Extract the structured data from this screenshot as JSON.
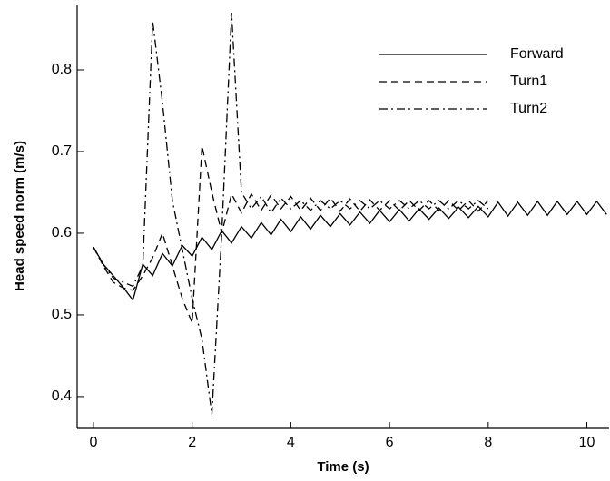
{
  "chart_data": {
    "type": "line",
    "x_label": "Time (s)",
    "y_label": "Head speed norm (m/s)",
    "x": [
      0,
      0.2,
      0.4,
      0.6,
      0.8,
      1.0,
      1.2,
      1.4,
      1.6,
      1.8,
      2.0,
      2.2,
      2.4,
      2.6,
      2.8,
      3.0,
      3.2,
      3.4,
      3.6,
      3.8,
      4.0,
      4.2,
      4.4,
      4.6,
      4.8,
      5.0,
      5.2,
      5.4,
      5.6,
      5.8,
      6.0,
      6.2,
      6.4,
      6.6,
      6.8,
      7.0,
      7.2,
      7.4,
      7.6,
      7.8,
      8.0,
      8.2,
      8.4,
      8.6,
      8.8,
      9.0,
      9.2,
      9.4,
      9.6,
      9.8,
      10.0,
      10.2,
      10.4
    ],
    "series": [
      {
        "name": "Forward",
        "color": "#000000",
        "dash": "solid",
        "values": [
          0.583,
          0.562,
          0.548,
          0.534,
          0.518,
          0.562,
          0.548,
          0.575,
          0.56,
          0.585,
          0.572,
          0.595,
          0.58,
          0.603,
          0.588,
          0.608,
          0.594,
          0.613,
          0.598,
          0.617,
          0.602,
          0.62,
          0.605,
          0.622,
          0.608,
          0.624,
          0.61,
          0.626,
          0.612,
          0.628,
          0.614,
          0.629,
          0.615,
          0.63,
          0.617,
          0.631,
          0.618,
          0.632,
          0.619,
          0.633,
          0.62,
          0.638,
          0.621,
          0.638,
          0.622,
          0.639,
          0.622,
          0.639,
          0.623,
          0.639,
          0.623,
          0.639,
          0.623
        ]
      },
      {
        "name": "Turn1",
        "color": "#000000",
        "dash": "dashed",
        "values": [
          0.583,
          0.56,
          0.54,
          0.533,
          0.53,
          0.548,
          0.57,
          0.6,
          0.56,
          0.52,
          0.49,
          0.707,
          0.65,
          0.6,
          0.648,
          0.625,
          0.648,
          0.628,
          0.647,
          0.63,
          0.645,
          0.628,
          0.643,
          0.628,
          0.643,
          0.627,
          0.642,
          0.627,
          0.641,
          0.628,
          0.64,
          0.628,
          0.64,
          0.628,
          0.64,
          0.628,
          0.64,
          0.628,
          0.64,
          0.627,
          0.64,
          null,
          null,
          null,
          null,
          null,
          null,
          null,
          null,
          null,
          null,
          null,
          null
        ]
      },
      {
        "name": "Turn2",
        "color": "#000000",
        "dash": "dashdot",
        "values": [
          0.583,
          0.562,
          0.545,
          0.54,
          0.535,
          0.56,
          0.86,
          0.76,
          0.64,
          0.58,
          0.52,
          0.47,
          0.378,
          0.6,
          0.87,
          0.65,
          0.63,
          0.645,
          0.625,
          0.643,
          0.63,
          0.64,
          0.628,
          0.64,
          0.63,
          0.64,
          0.63,
          0.64,
          0.63,
          0.64,
          0.63,
          0.64,
          0.63,
          0.64,
          0.63,
          0.64,
          0.63,
          0.64,
          0.63,
          0.64,
          0.63,
          null,
          null,
          null,
          null,
          null,
          null,
          null,
          null,
          null,
          null,
          null,
          null
        ]
      }
    ],
    "xlim": [
      -0.33,
      10.45
    ],
    "ylim": [
      0.361,
      0.88
    ],
    "xticks": [
      0,
      2,
      4,
      6,
      8,
      10
    ],
    "yticks": [
      0.4,
      0.5,
      0.6,
      0.7,
      0.8
    ],
    "grid": false,
    "legend": "upper right"
  }
}
